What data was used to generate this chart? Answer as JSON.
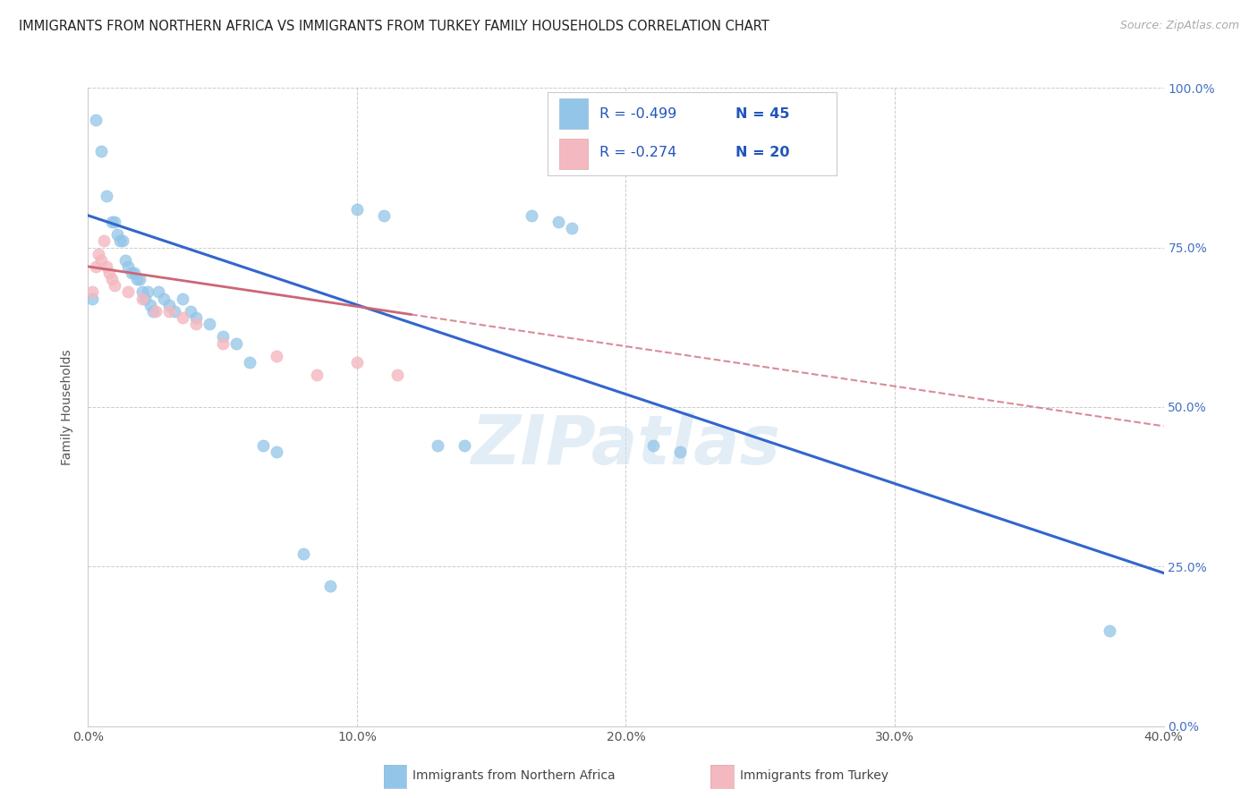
{
  "title": "IMMIGRANTS FROM NORTHERN AFRICA VS IMMIGRANTS FROM TURKEY FAMILY HOUSEHOLDS CORRELATION CHART",
  "source": "Source: ZipAtlas.com",
  "ylabel": "Family Households",
  "x_tick_labels": [
    "0.0%",
    "10.0%",
    "20.0%",
    "30.0%",
    "40.0%"
  ],
  "x_tick_values": [
    0,
    10,
    20,
    30,
    40
  ],
  "y_tick_labels": [
    "0.0%",
    "25.0%",
    "50.0%",
    "75.0%",
    "100.0%"
  ],
  "y_tick_values": [
    0,
    25,
    50,
    75,
    100
  ],
  "xlim": [
    0,
    40
  ],
  "ylim": [
    0,
    100
  ],
  "watermark": "ZIPatlas",
  "legend_blue_r": "-0.499",
  "legend_blue_n": "45",
  "legend_pink_r": "-0.274",
  "legend_pink_n": "20",
  "blue_scatter": [
    [
      0.15,
      67
    ],
    [
      0.3,
      95
    ],
    [
      0.5,
      90
    ],
    [
      0.7,
      83
    ],
    [
      0.9,
      79
    ],
    [
      1.0,
      79
    ],
    [
      1.1,
      77
    ],
    [
      1.2,
      76
    ],
    [
      1.3,
      76
    ],
    [
      1.4,
      73
    ],
    [
      1.5,
      72
    ],
    [
      1.6,
      71
    ],
    [
      1.7,
      71
    ],
    [
      1.8,
      70
    ],
    [
      1.9,
      70
    ],
    [
      2.0,
      68
    ],
    [
      2.1,
      67
    ],
    [
      2.2,
      68
    ],
    [
      2.3,
      66
    ],
    [
      2.4,
      65
    ],
    [
      2.6,
      68
    ],
    [
      2.8,
      67
    ],
    [
      3.0,
      66
    ],
    [
      3.2,
      65
    ],
    [
      3.5,
      67
    ],
    [
      3.8,
      65
    ],
    [
      4.0,
      64
    ],
    [
      4.5,
      63
    ],
    [
      5.0,
      61
    ],
    [
      5.5,
      60
    ],
    [
      6.0,
      57
    ],
    [
      6.5,
      44
    ],
    [
      7.0,
      43
    ],
    [
      8.0,
      27
    ],
    [
      9.0,
      22
    ],
    [
      10.0,
      81
    ],
    [
      11.0,
      80
    ],
    [
      13.0,
      44
    ],
    [
      14.0,
      44
    ],
    [
      16.5,
      80
    ],
    [
      17.5,
      79
    ],
    [
      18.0,
      78
    ],
    [
      21.0,
      44
    ],
    [
      22.0,
      43
    ],
    [
      38.0,
      15
    ]
  ],
  "pink_scatter": [
    [
      0.15,
      68
    ],
    [
      0.3,
      72
    ],
    [
      0.4,
      74
    ],
    [
      0.5,
      73
    ],
    [
      0.6,
      76
    ],
    [
      0.7,
      72
    ],
    [
      0.8,
      71
    ],
    [
      0.9,
      70
    ],
    [
      1.0,
      69
    ],
    [
      1.5,
      68
    ],
    [
      2.0,
      67
    ],
    [
      2.5,
      65
    ],
    [
      3.0,
      65
    ],
    [
      3.5,
      64
    ],
    [
      4.0,
      63
    ],
    [
      5.0,
      60
    ],
    [
      7.0,
      58
    ],
    [
      8.5,
      55
    ],
    [
      10.0,
      57
    ],
    [
      11.5,
      55
    ]
  ],
  "blue_line_x": [
    0,
    40
  ],
  "blue_line_y": [
    80,
    24
  ],
  "pink_line_x": [
    0,
    40
  ],
  "pink_line_y": [
    72,
    47
  ],
  "pink_solid_end_x": 12,
  "blue_color": "#93c5e8",
  "pink_color": "#f4b8c0",
  "blue_line_color": "#3366cc",
  "pink_line_color": "#cc6677",
  "background_color": "#ffffff",
  "grid_color": "#cccccc",
  "title_color": "#222222",
  "axis_label_color": "#555555",
  "right_axis_color": "#4472c4",
  "legend_text_color": "#2255bb"
}
